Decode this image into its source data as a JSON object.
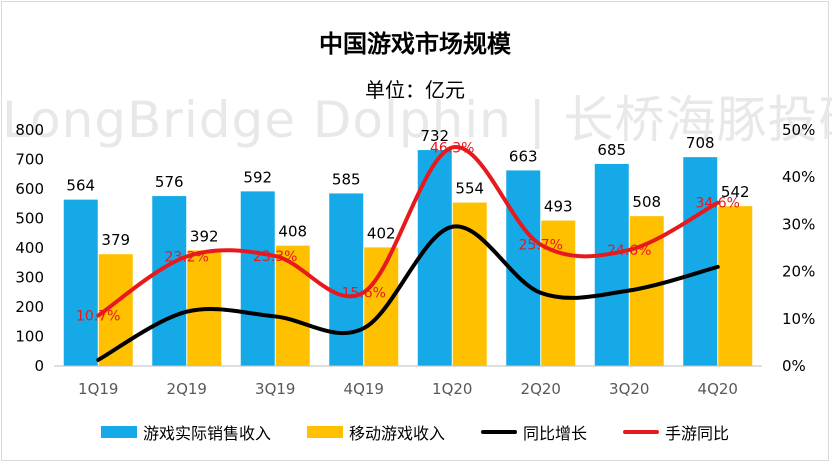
{
  "chart_data": {
    "type": "bar",
    "title": "中国游戏市场规模",
    "subtitle": "单位：亿元",
    "watermark": "LongBridge Dolphin | 长桥海豚投研",
    "categories": [
      "1Q19",
      "2Q19",
      "3Q19",
      "4Q19",
      "1Q20",
      "2Q20",
      "3Q20",
      "4Q20"
    ],
    "y_left": {
      "ticks": [
        "0",
        "100",
        "200",
        "300",
        "400",
        "500",
        "600",
        "700",
        "800"
      ],
      "range": [
        0,
        800
      ]
    },
    "y_right": {
      "ticks": [
        "0%",
        "10%",
        "20%",
        "30%",
        "40%",
        "50%"
      ],
      "range": [
        0,
        50
      ]
    },
    "series": [
      {
        "name": "游戏实际销售收入",
        "kind": "bar",
        "axis": "left",
        "color": "#16a9e8",
        "values": [
          564,
          576,
          592,
          585,
          732,
          663,
          685,
          708
        ],
        "labels": [
          "564",
          "576",
          "592",
          "585",
          "732",
          "663",
          "685",
          "708"
        ]
      },
      {
        "name": "移动游戏收入",
        "kind": "bar",
        "axis": "left",
        "color": "#ffc000",
        "values": [
          379,
          392,
          408,
          402,
          554,
          493,
          508,
          542
        ],
        "labels": [
          "379",
          "392",
          "408",
          "402",
          "554",
          "493",
          "508",
          "542"
        ]
      },
      {
        "name": "同比增长",
        "kind": "line",
        "axis": "right",
        "color": "#000000",
        "values": [
          1.3,
          11.5,
          10.5,
          8.0,
          29.5,
          15.5,
          16.0,
          21.0
        ]
      },
      {
        "name": "手游同比",
        "kind": "line",
        "axis": "right",
        "color": "#e8191c",
        "values": [
          10.7,
          23.2,
          23.3,
          15.6,
          46.3,
          25.7,
          24.6,
          34.6
        ],
        "labels": [
          "10.7%",
          "23.2%",
          "23.3%",
          "15.6%",
          "46.3%",
          "25.7%",
          "24.6%",
          "34.6%"
        ]
      }
    ]
  }
}
